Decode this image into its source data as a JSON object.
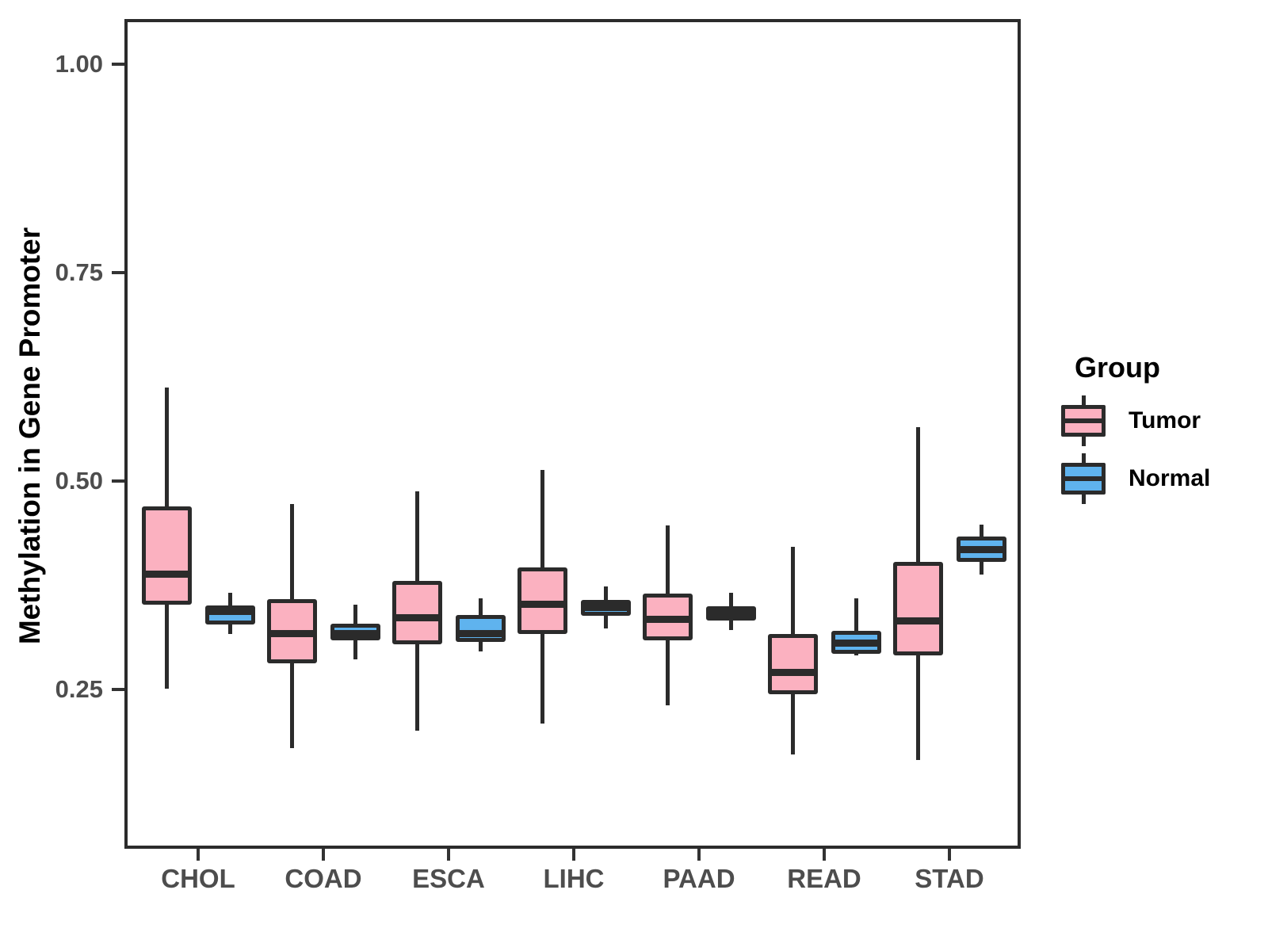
{
  "chart_data": {
    "type": "boxplot",
    "title": "",
    "ylabel": "Methylation in Gene Promoter",
    "xlabel": "",
    "categories": [
      "CHOL",
      "COAD",
      "ESCA",
      "LIHC",
      "PAAD",
      "READ",
      "STAD"
    ],
    "y_axis": {
      "tick_labels": [
        "1.00",
        "0.75",
        "0.50",
        "0.25"
      ],
      "tick_values": [
        1.0,
        0.75,
        0.5,
        0.25
      ],
      "range": [
        0.059,
        1.054
      ],
      "grid": false
    },
    "legend": {
      "title": "Group",
      "position": "right",
      "entries": [
        {
          "label": "Tumor",
          "fill": "#FBB1C0"
        },
        {
          "label": "Normal",
          "fill": "#5FB3EE"
        }
      ]
    },
    "series": [
      {
        "name": "Tumor",
        "fill": "#FBB1C0",
        "boxes": [
          {
            "category": "CHOL",
            "low": 0.251,
            "q1": 0.352,
            "median": 0.388,
            "q3": 0.47,
            "high": 0.612
          },
          {
            "category": "COAD",
            "low": 0.18,
            "q1": 0.281,
            "median": 0.317,
            "q3": 0.358,
            "high": 0.472
          },
          {
            "category": "ESCA",
            "low": 0.201,
            "q1": 0.304,
            "median": 0.336,
            "q3": 0.38,
            "high": 0.488
          },
          {
            "category": "LIHC",
            "low": 0.209,
            "q1": 0.317,
            "median": 0.352,
            "q3": 0.396,
            "high": 0.513
          },
          {
            "category": "PAAD",
            "low": 0.231,
            "q1": 0.309,
            "median": 0.334,
            "q3": 0.365,
            "high": 0.447
          },
          {
            "category": "READ",
            "low": 0.172,
            "q1": 0.244,
            "median": 0.27,
            "q3": 0.317,
            "high": 0.421
          },
          {
            "category": "STAD",
            "low": 0.165,
            "q1": 0.291,
            "median": 0.332,
            "q3": 0.403,
            "high": 0.565
          }
        ]
      },
      {
        "name": "Normal",
        "fill": "#5FB3EE",
        "boxes": [
          {
            "category": "CHOL",
            "low": 0.317,
            "q1": 0.328,
            "median": 0.344,
            "q3": 0.351,
            "high": 0.366
          },
          {
            "category": "COAD",
            "low": 0.286,
            "q1": 0.309,
            "median": 0.317,
            "q3": 0.329,
            "high": 0.352
          },
          {
            "category": "ESCA",
            "low": 0.296,
            "q1": 0.307,
            "median": 0.317,
            "q3": 0.339,
            "high": 0.359
          },
          {
            "category": "LIHC",
            "low": 0.323,
            "q1": 0.338,
            "median": 0.348,
            "q3": 0.357,
            "high": 0.374
          },
          {
            "category": "PAAD",
            "low": 0.321,
            "q1": 0.333,
            "median": 0.342,
            "q3": 0.35,
            "high": 0.366
          },
          {
            "category": "READ",
            "low": 0.291,
            "q1": 0.293,
            "median": 0.306,
            "q3": 0.32,
            "high": 0.359
          },
          {
            "category": "STAD",
            "low": 0.388,
            "q1": 0.403,
            "median": 0.418,
            "q3": 0.433,
            "high": 0.448
          }
        ]
      }
    ],
    "style": {
      "box_border_color": "#2b2b2b",
      "axis_color": "#333333",
      "tick_label_color": "#4d4d4d",
      "panel_border_color": "#2b2b2b",
      "background": "#ffffff"
    }
  }
}
